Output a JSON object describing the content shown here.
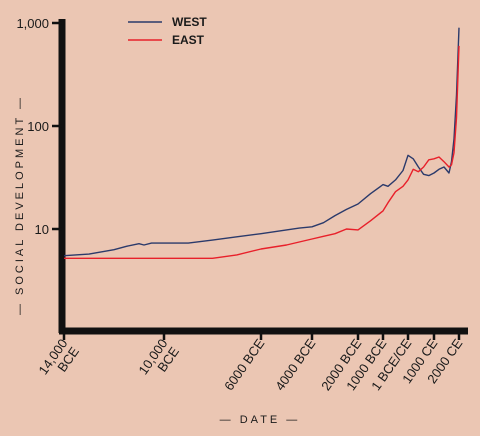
{
  "chart_data": {
    "type": "line",
    "title": "",
    "xlabel": "— DATE —",
    "ylabel": "— SOCIAL DEVELOPMENT —",
    "yscale": "log",
    "ylim": [
      3,
      1000
    ],
    "xlim": [
      -14000,
      2000
    ],
    "grid": false,
    "legend_position": "top-left",
    "colors": {
      "background": "#EBC6B3",
      "axis": "#111111",
      "west": "#2B3A6B",
      "east": "#E8202A"
    },
    "y_ticks": [
      {
        "value": 10,
        "label": "10"
      },
      {
        "value": 100,
        "label": "100"
      },
      {
        "value": 1000,
        "label": "1,000"
      }
    ],
    "x_ticks": [
      {
        "value": -14000,
        "label": "14,000 BCE"
      },
      {
        "value": -10000,
        "label": "10,000 BCE"
      },
      {
        "value": -6000,
        "label": "6000 BCE"
      },
      {
        "value": -4000,
        "label": "4000 BCE"
      },
      {
        "value": -2000,
        "label": "2000 BCE"
      },
      {
        "value": -1000,
        "label": "1000 BCE"
      },
      {
        "value": 0,
        "label": "1 BCE/CE"
      },
      {
        "value": 1000,
        "label": "1000 CE"
      },
      {
        "value": 2000,
        "label": "2000 CE"
      }
    ],
    "series": [
      {
        "name": "WEST",
        "color": "#2B3A6B",
        "x": [
          -14000,
          -13000,
          -12000,
          -11500,
          -11000,
          -10800,
          -10500,
          -10000,
          -9000,
          -8000,
          -7000,
          -6000,
          -5000,
          -4500,
          -4000,
          -3500,
          -3000,
          -2500,
          -2000,
          -1500,
          -1000,
          -800,
          -500,
          -200,
          0,
          200,
          400,
          600,
          800,
          1000,
          1200,
          1400,
          1600,
          1700,
          1800,
          1900,
          2000
        ],
        "y": [
          5.5,
          5.7,
          6.3,
          6.8,
          7.2,
          7.0,
          7.3,
          7.3,
          7.3,
          7.8,
          8.4,
          9.0,
          9.8,
          10.2,
          10.5,
          11.5,
          13.5,
          15.5,
          17.5,
          22,
          27,
          26,
          30,
          37,
          52,
          48,
          40,
          34,
          33,
          35,
          38,
          40,
          35,
          45,
          75,
          200,
          900
        ]
      },
      {
        "name": "EAST",
        "color": "#E8202A",
        "x": [
          -14000,
          -13000,
          -12000,
          -11000,
          -10000,
          -9000,
          -8000,
          -7000,
          -6000,
          -5000,
          -4000,
          -3500,
          -3000,
          -2500,
          -2000,
          -1500,
          -1000,
          -800,
          -500,
          -200,
          0,
          200,
          400,
          600,
          800,
          1000,
          1200,
          1400,
          1600,
          1700,
          1800,
          1900,
          2000
        ],
        "y": [
          5.2,
          5.2,
          5.2,
          5.2,
          5.2,
          5.2,
          5.2,
          5.6,
          6.4,
          7.0,
          8.0,
          8.5,
          9.0,
          10.0,
          9.8,
          12.0,
          15.0,
          18.0,
          23,
          26,
          30,
          38,
          36,
          40,
          47,
          48,
          50,
          45,
          40,
          42,
          55,
          120,
          600
        ]
      }
    ]
  }
}
